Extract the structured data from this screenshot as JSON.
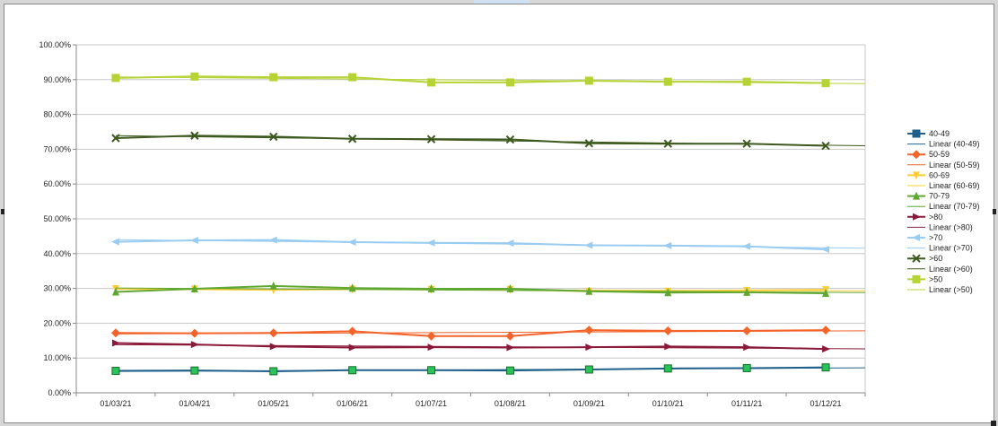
{
  "chart_data": {
    "type": "line",
    "x": [
      "01/03/21",
      "01/04/21",
      "01/05/21",
      "01/06/21",
      "01/07/21",
      "01/08/21",
      "01/09/21",
      "01/10/21",
      "01/11/21",
      "01/12/21"
    ],
    "ylim": [
      0,
      100
    ],
    "yticks": [
      "0.00%",
      "10.00%",
      "20.00%",
      "30.00%",
      "40.00%",
      "50.00%",
      "60.00%",
      "70.00%",
      "80.00%",
      "90.00%",
      "100.00%"
    ],
    "grid": true,
    "legend_position": "right",
    "series": [
      {
        "name": "40-49",
        "trend_name": "Linear (40-49)",
        "color": "#1f5f8b",
        "marker": "square",
        "values": [
          6.3,
          6.4,
          6.2,
          6.5,
          6.5,
          6.4,
          6.7,
          7.0,
          7.1,
          7.3
        ]
      },
      {
        "name": "50-59",
        "trend_name": "Linear (50-59)",
        "color": "#f4632a",
        "marker": "diamond",
        "values": [
          17.2,
          17.1,
          17.2,
          17.7,
          16.3,
          16.3,
          18.0,
          17.8,
          17.8,
          18.0
        ]
      },
      {
        "name": "60-69",
        "trend_name": "Linear (60-69)",
        "color": "#ffcc33",
        "marker": "triangle-down",
        "values": [
          29.9,
          29.8,
          29.6,
          29.8,
          29.7,
          29.7,
          29.2,
          29.2,
          29.4,
          29.6
        ]
      },
      {
        "name": "70-79",
        "trend_name": "Linear (70-79)",
        "color": "#5ea832",
        "marker": "triangle-up",
        "values": [
          29.0,
          29.9,
          30.7,
          30.1,
          29.9,
          29.9,
          29.2,
          28.8,
          28.9,
          28.6
        ]
      },
      {
        "name": ">80",
        "trend_name": "Linear (>80)",
        "color": "#8b1a3a",
        "marker": "triangle-right",
        "values": [
          14.3,
          13.9,
          13.3,
          13.0,
          13.1,
          13.0,
          13.1,
          13.3,
          13.1,
          12.6
        ]
      },
      {
        "name": ">70",
        "trend_name": "Linear (>70)",
        "color": "#99ccf2",
        "marker": "triangle-left",
        "values": [
          43.4,
          43.8,
          43.9,
          43.3,
          43.1,
          43.0,
          42.4,
          42.3,
          42.1,
          41.2
        ]
      },
      {
        "name": ">60",
        "trend_name": "Linear (>60)",
        "color": "#3d5a1e",
        "marker": "x",
        "values": [
          73.2,
          73.9,
          73.6,
          73.0,
          72.9,
          72.8,
          71.7,
          71.6,
          71.6,
          71.0
        ]
      },
      {
        "name": ">50",
        "trend_name": "Linear (>50)",
        "color": "#b5d334",
        "marker": "square",
        "values": [
          90.5,
          90.9,
          90.7,
          90.7,
          89.2,
          89.2,
          89.7,
          89.4,
          89.4,
          89.0
        ]
      }
    ]
  }
}
